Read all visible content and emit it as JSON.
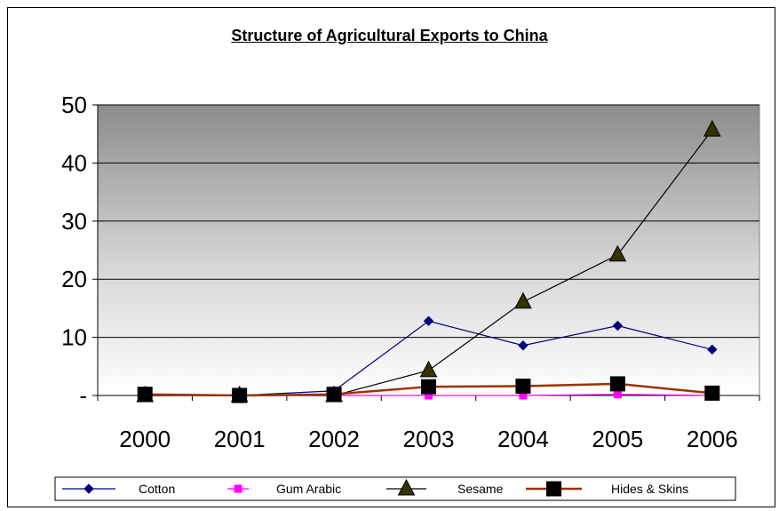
{
  "chart_data": {
    "type": "line",
    "title": "Structure of Agricultural Exports to China",
    "xlabel": "",
    "ylabel": "",
    "categories": [
      "2000",
      "2001",
      "2002",
      "2003",
      "2004",
      "2005",
      "2006"
    ],
    "ylim": [
      0,
      50
    ],
    "yticks": [
      0,
      10,
      20,
      30,
      40,
      50
    ],
    "ytick_labels": [
      "-",
      "10",
      "20",
      "30",
      "40",
      "50"
    ],
    "grid": true,
    "legend_position": "bottom",
    "series": [
      {
        "name": "Cotton",
        "color": "#000080",
        "marker": "diamond",
        "values": [
          0,
          0,
          0.8,
          12.8,
          8.6,
          12.0,
          7.9
        ]
      },
      {
        "name": "Gum Arabic",
        "color": "#ff00ff",
        "marker": "square",
        "values": [
          0,
          0,
          0,
          0,
          0,
          0.2,
          0
        ]
      },
      {
        "name": "Sesame",
        "color": "#000000",
        "marker": "triangle",
        "markerFill": "#333300",
        "values": [
          0,
          0,
          0,
          4.3,
          16.1,
          24.2,
          45.7
        ]
      },
      {
        "name": "Hides & Skins",
        "color": "#993300",
        "marker": "bigsquare",
        "values": [
          0.2,
          0,
          0.2,
          1.5,
          1.6,
          2.0,
          0.4
        ]
      }
    ]
  }
}
